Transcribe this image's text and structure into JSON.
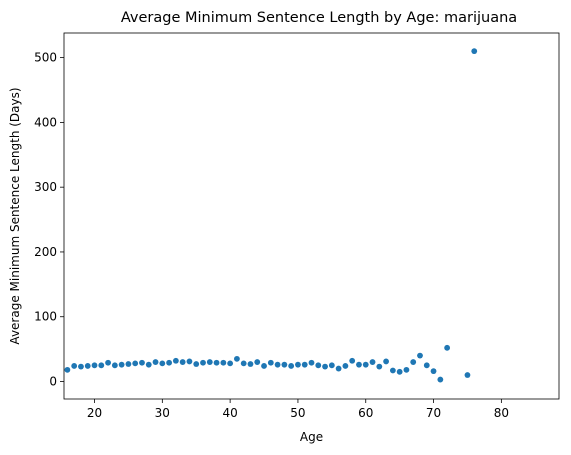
{
  "chart_data": {
    "type": "scatter",
    "title": "Average Minimum Sentence Length by Age: marijuana",
    "xlabel": "Age",
    "ylabel": "Average Minimum Sentence Length (Days)",
    "xlim": [
      15.5,
      88.5
    ],
    "ylim": [
      -27,
      538
    ],
    "xticks": [
      20,
      30,
      40,
      50,
      60,
      70,
      80
    ],
    "yticks": [
      0,
      100,
      200,
      300,
      400,
      500
    ],
    "color": "#1f77b4",
    "grid": false,
    "x": [
      16,
      17,
      18,
      19,
      20,
      21,
      22,
      23,
      24,
      25,
      26,
      27,
      28,
      29,
      30,
      31,
      32,
      33,
      34,
      35,
      36,
      37,
      38,
      39,
      40,
      41,
      42,
      43,
      44,
      45,
      46,
      47,
      48,
      49,
      50,
      51,
      52,
      53,
      54,
      55,
      56,
      57,
      58,
      59,
      60,
      61,
      62,
      63,
      64,
      65,
      66,
      67,
      68,
      69,
      70,
      71,
      72,
      75,
      76
    ],
    "y": [
      18,
      24,
      23,
      24,
      25,
      25,
      29,
      25,
      26,
      27,
      28,
      29,
      26,
      30,
      28,
      29,
      32,
      30,
      31,
      27,
      29,
      30,
      29,
      29,
      28,
      35,
      28,
      27,
      30,
      24,
      29,
      26,
      26,
      24,
      26,
      26,
      29,
      25,
      23,
      25,
      20,
      24,
      32,
      26,
      26,
      30,
      23,
      31,
      17,
      15,
      18,
      30,
      40,
      25,
      16,
      3,
      52,
      10,
      510
    ]
  }
}
